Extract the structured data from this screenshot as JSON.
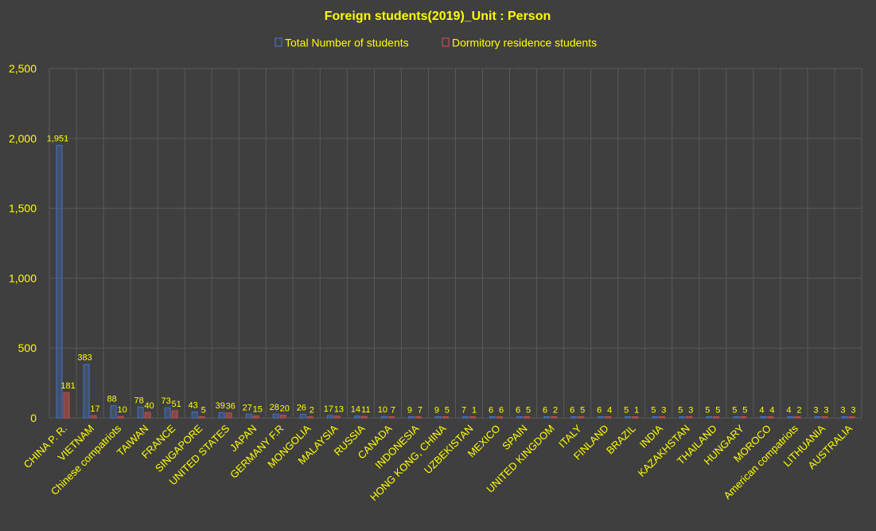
{
  "chart_data": {
    "type": "bar",
    "title": "Foreign students(2019)_Unit : Person",
    "xlabel": "",
    "ylabel": "",
    "ylim": [
      0,
      2500
    ],
    "yticks": [
      "0",
      "500",
      "1,000",
      "1,500",
      "2,000",
      "2,500"
    ],
    "ytick_values": [
      0,
      500,
      1000,
      1500,
      2000,
      2500
    ],
    "grid": true,
    "legend_position": "top",
    "categories": [
      "CHINA P. R.",
      "VIETNAM",
      "Chinese compatriots",
      "TAIWAN",
      "FRANCE",
      "SINGAPORE",
      "UNITED STATES",
      "JAPAN",
      "GERMANY F.R",
      "MONGOLIA",
      "MALAYSIA",
      "RUSSIA",
      "CANADA",
      "INDONESIA",
      "HONG KONG, CHINA",
      "UZBEKISTAN",
      "MEXICO",
      "SPAIN",
      "UNITED KINGDOM",
      "ITALY",
      "FINLAND",
      "BRAZIL",
      "INDIA",
      "KAZAKHSTAN",
      "THAILAND",
      "HUNGARY",
      "MOROCO",
      "American compatriots",
      "LITHUANIA",
      "AUSTRALIA"
    ],
    "series": [
      {
        "name": "Total Number of students",
        "color": "#4472c4",
        "values": [
          1951,
          383,
          88,
          78,
          73,
          43,
          39,
          27,
          28,
          26,
          17,
          14,
          10,
          9,
          9,
          7,
          6,
          6,
          6,
          6,
          6,
          5,
          5,
          5,
          5,
          5,
          4,
          4,
          3,
          3
        ],
        "labels": [
          "1,951",
          "383",
          "88",
          "78",
          "73",
          "43",
          "39",
          "27",
          "28",
          "26",
          "17",
          "14",
          "10",
          "9",
          "9",
          "7",
          "6",
          "6",
          "6",
          "6",
          "6",
          "5",
          "5",
          "5",
          "5",
          "5",
          "4",
          "4",
          "3",
          "3"
        ]
      },
      {
        "name": "Dormitory residence students",
        "color": "#c0504d",
        "values": [
          181,
          17,
          10,
          40,
          51,
          5,
          36,
          15,
          20,
          2,
          13,
          11,
          7,
          7,
          5,
          1,
          6,
          5,
          2,
          5,
          4,
          1,
          3,
          3,
          5,
          5,
          4,
          2,
          3,
          3
        ],
        "labels": [
          "181",
          "17",
          "10",
          "40",
          "51",
          "5",
          "36",
          "15",
          "20",
          "2",
          "13",
          "11",
          "7",
          "7",
          "5",
          "1",
          "6",
          "5",
          "2",
          "5",
          "4",
          "1",
          "3",
          "3",
          "5",
          "5",
          "4",
          "2",
          "3",
          "3"
        ]
      }
    ]
  },
  "colors": {
    "background": "#3f3f3f",
    "text": "#ffff00",
    "grid": "#595959"
  }
}
